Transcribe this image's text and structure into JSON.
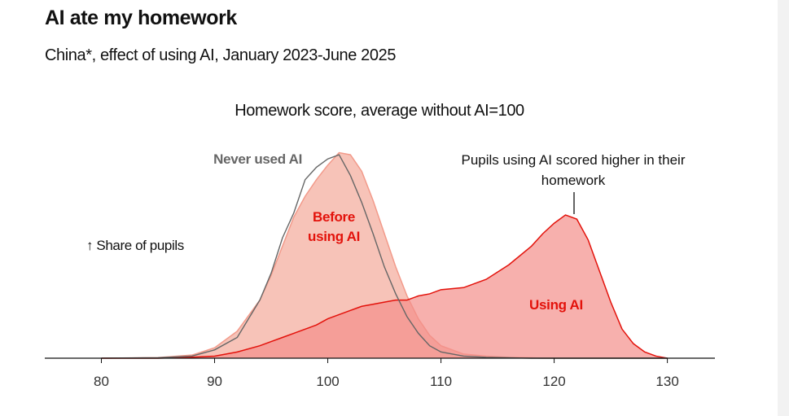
{
  "chart_data": {
    "type": "area",
    "title": "AI ate my homework",
    "subtitle": "China*, effect of using AI, January 2023-June 2025",
    "chart_title": "Homework score, average without AI=100",
    "y_label": "↑ Share of pupils",
    "annotation": "Pupils using AI scored higher in their homework",
    "x": [
      80,
      85,
      88,
      90,
      92,
      94,
      95,
      96,
      97,
      98,
      99,
      100,
      101,
      102,
      103,
      104,
      105,
      106,
      107,
      108,
      109,
      110,
      112,
      114,
      116,
      118,
      119,
      120,
      121,
      122,
      123,
      124,
      125,
      126,
      127,
      128,
      129,
      130
    ],
    "series": [
      {
        "name": "Before using AI",
        "color": "#f7c3b8",
        "line_color": "#f29a8a",
        "values": [
          0,
          0.3,
          1.5,
          5,
          13,
          28,
          40,
          54,
          68,
          78,
          86,
          93,
          99,
          98,
          90,
          76,
          60,
          44,
          30,
          19,
          11,
          6,
          2,
          1,
          0.4,
          0.2,
          0,
          0,
          0,
          0,
          0,
          0,
          0,
          0,
          0,
          0,
          0,
          0
        ]
      },
      {
        "name": "Using AI",
        "color": "#f48f8a",
        "line_color": "#e3120b",
        "values": [
          0,
          0,
          0.5,
          1,
          3,
          6,
          8,
          10,
          12,
          14,
          16,
          19,
          21,
          23,
          25,
          26,
          27,
          28,
          28,
          30,
          31,
          33,
          34,
          38,
          45,
          54,
          60,
          65,
          69,
          67,
          57,
          42,
          27,
          14,
          7,
          3,
          1,
          0
        ]
      },
      {
        "name": "Never used AI",
        "color": "#666666",
        "values": [
          0,
          0.2,
          1,
          4,
          10,
          28,
          41,
          58,
          70,
          86,
          92,
          96,
          98,
          88,
          75,
          60,
          44,
          31,
          20,
          12,
          6,
          3,
          1,
          0.4,
          0.2,
          0,
          0,
          0,
          0,
          0,
          0,
          0,
          0,
          0,
          0,
          0,
          0,
          0
        ]
      }
    ],
    "xlim": [
      75,
      134.2
    ],
    "ylim": [
      0,
      100
    ],
    "xticks": [
      80,
      90,
      100,
      110,
      120,
      130
    ]
  }
}
